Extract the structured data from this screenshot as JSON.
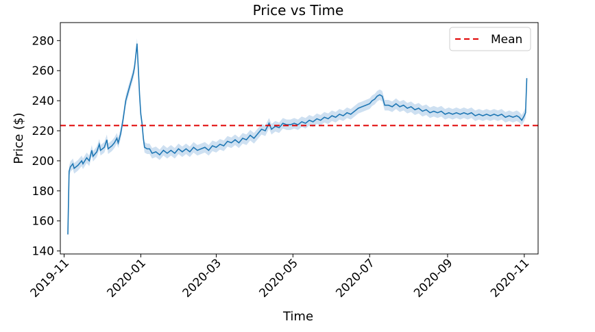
{
  "chart_data": {
    "type": "line",
    "title": "Price vs Time",
    "xlabel": "Time",
    "ylabel": "Price ($)",
    "xlim": [
      "2019-10-29",
      "2020-11-12"
    ],
    "ylim": [
      138,
      292
    ],
    "x_ticks": [
      "2019-11",
      "2020-01",
      "2020-03",
      "2020-05",
      "2020-07",
      "2020-09",
      "2020-11"
    ],
    "y_ticks": [
      140,
      160,
      180,
      200,
      220,
      240,
      260,
      280
    ],
    "grid": false,
    "legend": {
      "placement": "top-right",
      "entries": [
        "Mean"
      ]
    },
    "colors": {
      "series": "#1f77b4",
      "band": "#c6dbef",
      "mean": "#e00000"
    },
    "mean_line": {
      "name": "Mean",
      "value": 223.5
    },
    "ci_band_width": 3.5,
    "series": [
      {
        "points": [
          [
            "2019-11-04",
            151
          ],
          [
            "2019-11-05",
            193
          ],
          [
            "2019-11-06",
            196
          ],
          [
            "2019-11-08",
            198
          ],
          [
            "2019-11-09",
            195
          ],
          [
            "2019-11-12",
            197
          ],
          [
            "2019-11-15",
            200
          ],
          [
            "2019-11-16",
            198
          ],
          [
            "2019-11-19",
            202
          ],
          [
            "2019-11-21",
            200
          ],
          [
            "2019-11-23",
            207
          ],
          [
            "2019-11-24",
            203
          ],
          [
            "2019-11-27",
            206
          ],
          [
            "2019-11-29",
            211
          ],
          [
            "2019-11-30",
            207
          ],
          [
            "2019-12-03",
            209
          ],
          [
            "2019-12-05",
            214
          ],
          [
            "2019-12-06",
            208
          ],
          [
            "2019-12-09",
            210
          ],
          [
            "2019-12-11",
            212
          ],
          [
            "2019-12-13",
            215
          ],
          [
            "2019-12-14",
            212
          ],
          [
            "2019-12-16",
            218
          ],
          [
            "2019-12-18",
            228
          ],
          [
            "2019-12-20",
            240
          ],
          [
            "2019-12-22",
            246
          ],
          [
            "2019-12-24",
            252
          ],
          [
            "2019-12-25",
            255
          ],
          [
            "2019-12-26",
            258
          ],
          [
            "2019-12-27",
            262
          ],
          [
            "2019-12-28",
            270
          ],
          [
            "2019-12-29",
            278
          ],
          [
            "2019-12-30",
            262
          ],
          [
            "2019-12-31",
            244
          ],
          [
            "2020-01-01",
            231
          ],
          [
            "2020-01-02",
            225
          ],
          [
            "2020-01-03",
            215
          ],
          [
            "2020-01-04",
            209
          ],
          [
            "2020-01-06",
            208
          ],
          [
            "2020-01-08",
            208
          ],
          [
            "2020-01-10",
            205
          ],
          [
            "2020-01-13",
            206
          ],
          [
            "2020-01-16",
            204
          ],
          [
            "2020-01-19",
            207
          ],
          [
            "2020-01-22",
            205
          ],
          [
            "2020-01-25",
            207
          ],
          [
            "2020-01-28",
            205
          ],
          [
            "2020-01-31",
            208
          ],
          [
            "2020-02-03",
            206
          ],
          [
            "2020-02-06",
            208
          ],
          [
            "2020-02-09",
            206
          ],
          [
            "2020-02-12",
            209
          ],
          [
            "2020-02-15",
            207
          ],
          [
            "2020-02-18",
            208
          ],
          [
            "2020-02-21",
            209
          ],
          [
            "2020-02-24",
            207
          ],
          [
            "2020-02-27",
            210
          ],
          [
            "2020-03-01",
            209
          ],
          [
            "2020-03-04",
            211
          ],
          [
            "2020-03-07",
            210
          ],
          [
            "2020-03-10",
            213
          ],
          [
            "2020-03-13",
            212
          ],
          [
            "2020-03-16",
            214
          ],
          [
            "2020-03-19",
            212
          ],
          [
            "2020-03-22",
            215
          ],
          [
            "2020-03-25",
            214
          ],
          [
            "2020-03-28",
            217
          ],
          [
            "2020-03-31",
            215
          ],
          [
            "2020-04-03",
            218
          ],
          [
            "2020-04-06",
            221
          ],
          [
            "2020-04-09",
            220
          ],
          [
            "2020-04-12",
            225
          ],
          [
            "2020-04-14",
            221
          ],
          [
            "2020-04-17",
            223
          ],
          [
            "2020-04-20",
            222
          ],
          [
            "2020-04-23",
            225
          ],
          [
            "2020-04-26",
            224
          ],
          [
            "2020-04-29",
            224
          ],
          [
            "2020-05-02",
            225
          ],
          [
            "2020-05-05",
            224
          ],
          [
            "2020-05-08",
            226
          ],
          [
            "2020-05-11",
            225
          ],
          [
            "2020-05-14",
            227
          ],
          [
            "2020-05-17",
            226
          ],
          [
            "2020-05-20",
            228
          ],
          [
            "2020-05-23",
            227
          ],
          [
            "2020-05-26",
            229
          ],
          [
            "2020-05-29",
            228
          ],
          [
            "2020-06-01",
            230
          ],
          [
            "2020-06-04",
            229
          ],
          [
            "2020-06-07",
            231
          ],
          [
            "2020-06-10",
            230
          ],
          [
            "2020-06-13",
            232
          ],
          [
            "2020-06-16",
            231
          ],
          [
            "2020-06-19",
            233
          ],
          [
            "2020-06-22",
            235
          ],
          [
            "2020-06-25",
            236
          ],
          [
            "2020-06-28",
            237
          ],
          [
            "2020-07-01",
            238
          ],
          [
            "2020-07-03",
            240
          ],
          [
            "2020-07-05",
            241
          ],
          [
            "2020-07-07",
            243
          ],
          [
            "2020-07-09",
            244
          ],
          [
            "2020-07-11",
            243
          ],
          [
            "2020-07-13",
            237
          ],
          [
            "2020-07-16",
            237
          ],
          [
            "2020-07-19",
            236
          ],
          [
            "2020-07-22",
            238
          ],
          [
            "2020-07-25",
            236
          ],
          [
            "2020-07-28",
            237
          ],
          [
            "2020-07-31",
            235
          ],
          [
            "2020-08-03",
            236
          ],
          [
            "2020-08-06",
            234
          ],
          [
            "2020-08-09",
            235
          ],
          [
            "2020-08-12",
            233
          ],
          [
            "2020-08-15",
            234
          ],
          [
            "2020-08-18",
            232
          ],
          [
            "2020-08-21",
            233
          ],
          [
            "2020-08-24",
            232
          ],
          [
            "2020-08-27",
            233
          ],
          [
            "2020-08-30",
            231
          ],
          [
            "2020-09-02",
            232
          ],
          [
            "2020-09-05",
            231
          ],
          [
            "2020-09-08",
            232
          ],
          [
            "2020-09-11",
            231
          ],
          [
            "2020-09-14",
            232
          ],
          [
            "2020-09-17",
            231
          ],
          [
            "2020-09-20",
            232
          ],
          [
            "2020-09-23",
            230
          ],
          [
            "2020-09-26",
            231
          ],
          [
            "2020-09-29",
            230
          ],
          [
            "2020-10-02",
            231
          ],
          [
            "2020-10-05",
            230
          ],
          [
            "2020-10-08",
            231
          ],
          [
            "2020-10-11",
            230
          ],
          [
            "2020-10-14",
            231
          ],
          [
            "2020-10-17",
            229
          ],
          [
            "2020-10-20",
            230
          ],
          [
            "2020-10-23",
            229
          ],
          [
            "2020-10-26",
            230
          ],
          [
            "2020-10-28",
            229
          ],
          [
            "2020-10-30",
            227
          ],
          [
            "2020-11-01",
            230
          ],
          [
            "2020-11-02",
            232
          ],
          [
            "2020-11-03",
            255
          ]
        ]
      }
    ]
  }
}
